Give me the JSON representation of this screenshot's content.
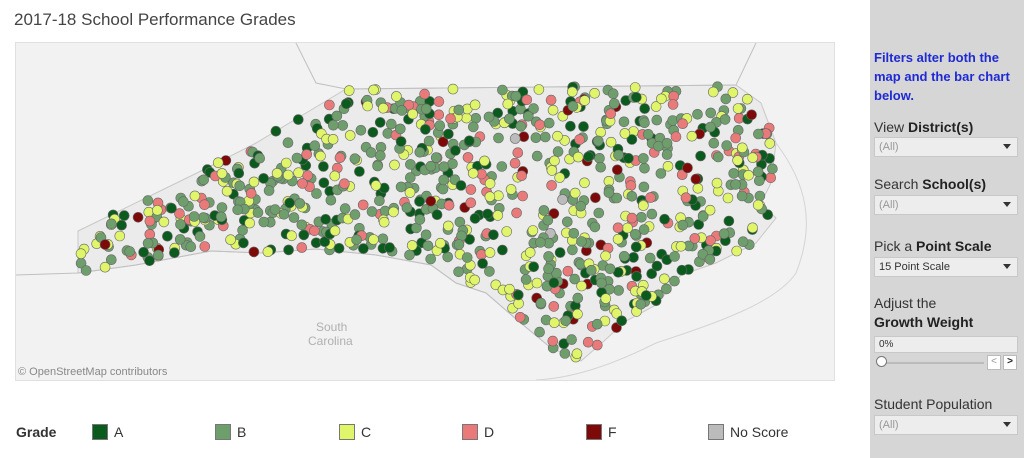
{
  "title": "2017-18 School Performance Grades",
  "map": {
    "attribution": "© OpenStreetMap contributors",
    "place_labels": [
      "South",
      "Carolina"
    ]
  },
  "legend": {
    "title": "Grade",
    "items": [
      {
        "label": "A",
        "color": "#0c5b1e"
      },
      {
        "label": "B",
        "color": "#6f9e6d"
      },
      {
        "label": "C",
        "color": "#e0f56a"
      },
      {
        "label": "D",
        "color": "#ea7a7a"
      },
      {
        "label": "F",
        "color": "#7e0909"
      },
      {
        "label": "No Score",
        "color": "#bbbbbb"
      }
    ]
  },
  "sidebar": {
    "note": "Filters alter both the map and the bar chart below.",
    "district": {
      "prefix": "View ",
      "label": "District(s)",
      "value": "(All)"
    },
    "school": {
      "prefix": "Search ",
      "label": "School(s)",
      "value": "(All)"
    },
    "point_scale": {
      "prefix": "Pick a ",
      "label": "Point Scale",
      "value": "15 Point Scale"
    },
    "growth": {
      "prefix": "Adjust the",
      "label": "Growth Weight",
      "value": "0%"
    },
    "population": {
      "label": "Student Population",
      "value": "(All)"
    }
  }
}
